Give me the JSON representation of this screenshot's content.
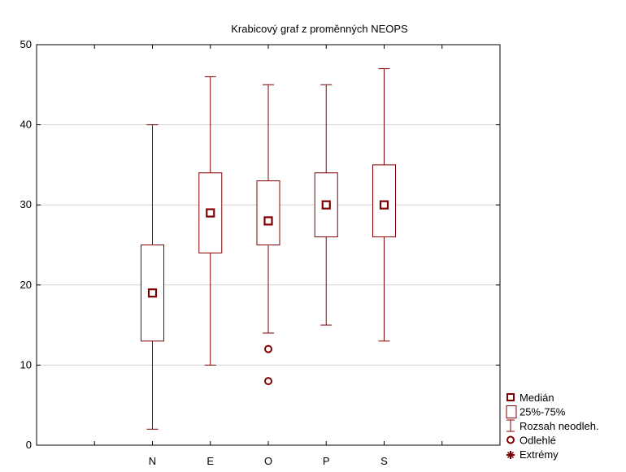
{
  "chart_data": {
    "type": "boxplot",
    "title": "Krabicový graf z proměnných NEOPS",
    "xlabel": "",
    "ylabel": "",
    "categories": [
      "N",
      "E",
      "O",
      "P",
      "S"
    ],
    "ylim": [
      0,
      50
    ],
    "yticks": [
      "0",
      "10",
      "20",
      "30",
      "40",
      "50"
    ],
    "grid": true,
    "legend_position": "bottom-right",
    "colors": {
      "series": "#7f0000",
      "grid": "#d0d0d0",
      "frame": "#000000"
    },
    "boxes": [
      {
        "name": "N",
        "median": 19,
        "q1": 13,
        "q3": 25,
        "whisker_low": 2,
        "whisker_high": 40,
        "outliers": []
      },
      {
        "name": "E",
        "median": 29,
        "q1": 24,
        "q3": 34,
        "whisker_low": 10,
        "whisker_high": 46,
        "outliers": []
      },
      {
        "name": "O",
        "median": 28,
        "q1": 25,
        "q3": 33,
        "whisker_low": 14,
        "whisker_high": 45,
        "outliers": [
          12,
          8
        ]
      },
      {
        "name": "P",
        "median": 30,
        "q1": 26,
        "q3": 34,
        "whisker_low": 15,
        "whisker_high": 45,
        "outliers": []
      },
      {
        "name": "S",
        "median": 30,
        "q1": 26,
        "q3": 35,
        "whisker_low": 13,
        "whisker_high": 47,
        "outliers": []
      }
    ],
    "legend": [
      {
        "symbol": "median-square-icon",
        "label": "Medián"
      },
      {
        "symbol": "box-rect-icon",
        "label": "25%-75%"
      },
      {
        "symbol": "whisker-icon",
        "label": "Rozsah neodleh."
      },
      {
        "symbol": "outlier-circle-icon",
        "label": "Odlehlé"
      },
      {
        "symbol": "extreme-star-icon",
        "label": "Extrémy"
      }
    ]
  }
}
